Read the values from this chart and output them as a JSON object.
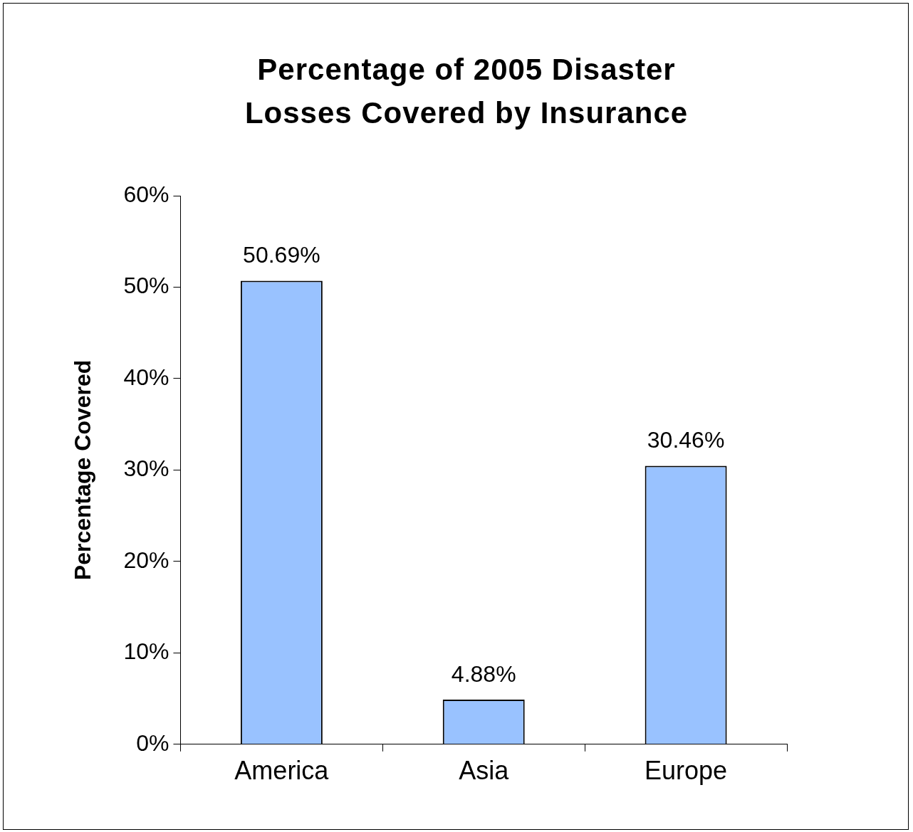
{
  "chart_data": {
    "type": "bar",
    "title": "Percentage of 2005 Disaster Losses Covered by Insurance",
    "ylabel": "Percentage Covered",
    "categories": [
      "America",
      "Asia",
      "Europe"
    ],
    "values": [
      50.69,
      4.88,
      30.46
    ],
    "value_labels": [
      "50.69%",
      "4.88%",
      "30.46%"
    ],
    "color": "#99c2ff",
    "ylim": [
      0,
      60
    ],
    "yticks": [
      {
        "value": 0,
        "label": "0%"
      },
      {
        "value": 10,
        "label": "10%"
      },
      {
        "value": 20,
        "label": "20%"
      },
      {
        "value": 30,
        "label": "30%"
      },
      {
        "value": 40,
        "label": "40%"
      },
      {
        "value": 50,
        "label": "50%"
      },
      {
        "value": 60,
        "label": "60%"
      }
    ],
    "grid": false,
    "legend": false
  }
}
